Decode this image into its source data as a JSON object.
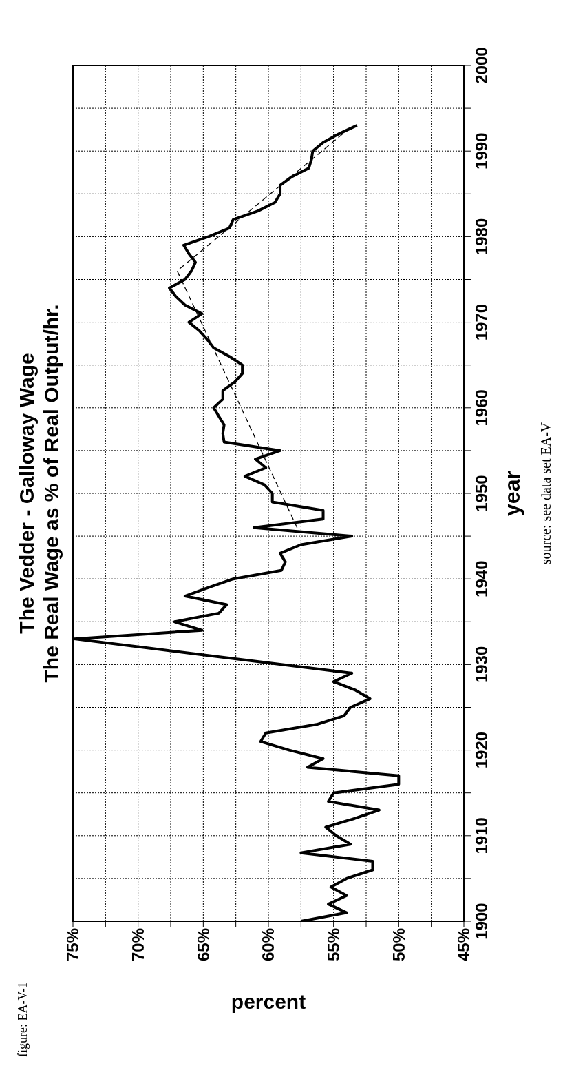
{
  "chart_data": {
    "type": "line",
    "title": "The Vedder - Galloway Wage",
    "subtitle": "The Real Wage as % of Real Output/hr.",
    "xlabel": "percent",
    "ylabel": "year",
    "annotations": [
      "figure:  EA-V-1",
      "source:  see data set EA-V"
    ],
    "ylim": [
      1900,
      2000
    ],
    "yticks": [
      1900,
      {
        "value": 1905,
        "label": null
      },
      1910,
      {
        "value": 1915,
        "label": null
      },
      1920,
      {
        "value": 1925,
        "label": null
      },
      1930,
      {
        "value": 1935,
        "label": null
      },
      1940,
      {
        "value": 1945,
        "label": null
      },
      1950,
      {
        "value": 1955,
        "label": null
      },
      1960,
      {
        "value": 1965,
        "label": null
      },
      1970,
      {
        "value": 1975,
        "label": null
      },
      1980,
      {
        "value": 1985,
        "label": null
      },
      1990,
      {
        "value": 1995,
        "label": null
      },
      2000
    ],
    "xlim": [
      75,
      45
    ],
    "xticks": [
      {
        "value": 45,
        "label": "45%"
      },
      {
        "value": 47.5,
        "label": null
      },
      {
        "value": 50,
        "label": "50%"
      },
      {
        "value": 52.5,
        "label": null
      },
      {
        "value": 55,
        "label": "55%"
      },
      {
        "value": 57.5,
        "label": null
      },
      {
        "value": 60,
        "label": "60%"
      },
      {
        "value": 62.5,
        "label": null
      },
      {
        "value": 65,
        "label": "65%"
      },
      {
        "value": 67.5,
        "label": null
      },
      {
        "value": 70,
        "label": "70%"
      },
      {
        "value": 72.5,
        "label": null
      },
      {
        "value": 75,
        "label": "75%"
      }
    ],
    "grid": true,
    "series": [
      {
        "color": "#000000",
        "values": [
          1900,
          1901,
          1902,
          1903,
          1904,
          1905,
          1906,
          1907,
          1908,
          1909,
          1910,
          1911,
          1912,
          1913,
          1914,
          1915,
          1916,
          1917,
          1918,
          1919,
          1920,
          1921,
          1922,
          1923,
          1924,
          1925,
          1926,
          1927,
          1928,
          1929,
          1930,
          1931,
          1932,
          1933,
          1934,
          1935,
          1936,
          1937,
          1938,
          1939,
          1940,
          1941,
          1942,
          1943,
          1944,
          1945,
          1946,
          1947,
          1948,
          1949,
          1950,
          1951,
          1952,
          1953,
          1954,
          1955,
          1956,
          1957,
          1958,
          1959,
          1960,
          1961,
          1962,
          1963,
          1964,
          1965,
          1966,
          1967,
          1968,
          1969,
          1970,
          1971,
          1972,
          1973,
          1974,
          1975,
          1976,
          1977,
          1978,
          1979,
          1980,
          1981,
          1982,
          1983,
          1984,
          1985,
          1986,
          1987,
          1988,
          1989,
          1990,
          1991,
          1992,
          1993
        ],
        "x": [
          57.5,
          54.0,
          55.4,
          54.0,
          55.2,
          54.0,
          52.0,
          52.0,
          57.5,
          53.7,
          54.8,
          55.6,
          53.4,
          51.5,
          55.4,
          55.0,
          50.0,
          50.0,
          57.0,
          55.8,
          58.4,
          60.6,
          60.2,
          56.3,
          54.2,
          53.7,
          52.2,
          53.3,
          55.0,
          53.6,
          58.9,
          64.3,
          69.6,
          74.9,
          65.1,
          67.2,
          63.8,
          63.2,
          66.4,
          64.6,
          62.7,
          59.0,
          58.7,
          59.1,
          57.5,
          53.6,
          61.1,
          55.8,
          55.8,
          59.7,
          59.7,
          60.3,
          61.8,
          60.2,
          61.0,
          59.1,
          63.4,
          63.5,
          63.4,
          63.8,
          64.2,
          63.5,
          63.5,
          62.6,
          62.0,
          62.0,
          63.0,
          64.2,
          64.7,
          65.3,
          66.1,
          65.1,
          66.4,
          67.1,
          67.6,
          66.4,
          65.9,
          65.6,
          66.1,
          66.5,
          64.6,
          63.0,
          62.7,
          60.8,
          59.5,
          59.1,
          59.1,
          58.2,
          56.9,
          56.7,
          56.6,
          55.8,
          54.6,
          53.2
        ]
      },
      {
        "type": "line",
        "line_style": "dashed",
        "color": "#000000",
        "values": [
          1946,
          1976,
          1992
        ],
        "x": [
          57.8,
          67.0,
          54.3
        ]
      }
    ]
  }
}
